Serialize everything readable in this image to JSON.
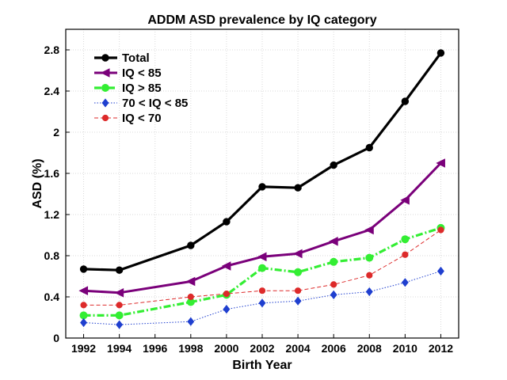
{
  "chart_data": {
    "type": "line",
    "title": "ADDM ASD prevalence by IQ category",
    "xlabel": "Birth Year",
    "ylabel": "ASD (%)",
    "xlim": [
      1991,
      2013
    ],
    "ylim": [
      0,
      3.0
    ],
    "xticks": [
      1992,
      1994,
      1996,
      1998,
      2000,
      2002,
      2004,
      2006,
      2008,
      2010,
      2012
    ],
    "yticks": [
      0,
      0.4,
      0.8,
      1.2,
      1.6,
      2,
      2.4,
      2.8
    ],
    "ytick_labels": [
      "0",
      "0.4",
      "0.8",
      "1.2",
      "1.6",
      "2",
      "2.4",
      "2.8"
    ],
    "grid": true,
    "legend_position": "top-left",
    "x": [
      1992,
      1994,
      1998,
      2000,
      2002,
      2004,
      2006,
      2008,
      2010,
      2012
    ],
    "series": [
      {
        "name": "Total",
        "color": "#000000",
        "line": "solid",
        "marker": "circle",
        "values": [
          0.67,
          0.66,
          0.9,
          1.13,
          1.47,
          1.46,
          1.68,
          1.85,
          2.3,
          2.77
        ]
      },
      {
        "name": "IQ < 85",
        "color": "#7a007a",
        "line": "solid",
        "marker": "triangle-left",
        "values": [
          0.46,
          0.44,
          0.55,
          0.7,
          0.79,
          0.82,
          0.94,
          1.05,
          1.34,
          1.7
        ]
      },
      {
        "name": "IQ > 85",
        "color": "#33ee33",
        "line": "dashdot",
        "marker": "circle",
        "values": [
          0.22,
          0.22,
          0.35,
          0.42,
          0.68,
          0.64,
          0.74,
          0.78,
          0.96,
          1.07
        ]
      },
      {
        "name": "70 < IQ < 85",
        "color": "#1f3fcf",
        "line": "dotted",
        "marker": "diamond",
        "values": [
          0.15,
          0.13,
          0.16,
          0.28,
          0.34,
          0.36,
          0.42,
          0.45,
          0.54,
          0.65
        ]
      },
      {
        "name": "IQ < 70",
        "color": "#dd2a2a",
        "line": "dashed",
        "marker": "circle",
        "values": [
          0.32,
          0.32,
          0.4,
          0.43,
          0.46,
          0.46,
          0.52,
          0.61,
          0.81,
          1.05
        ]
      }
    ]
  }
}
